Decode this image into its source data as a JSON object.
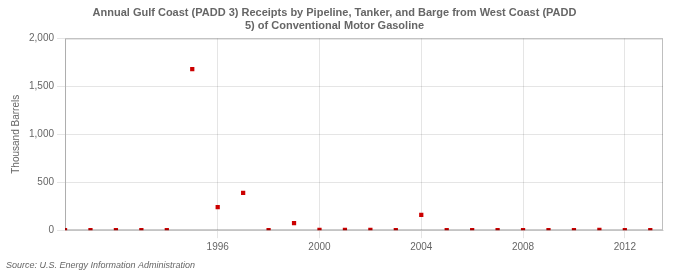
{
  "chart_data": {
    "type": "scatter",
    "title": "Annual Gulf Coast (PADD 3) Receipts by Pipeline, Tanker, and Barge from West Coast (PADD\n5) of Conventional Motor Gasoline",
    "ylabel": "Thousand Barrels",
    "annotations": [
      "Source: U.S. Energy Information Administration"
    ],
    "x": [
      1990,
      1991,
      1992,
      1993,
      1994,
      1995,
      1996,
      1997,
      1998,
      1999,
      2000,
      2001,
      2002,
      2003,
      2004,
      2005,
      2006,
      2007,
      2008,
      2009,
      2010,
      2011,
      2012,
      2013
    ],
    "values": [
      0,
      0,
      0,
      0,
      1,
      1680,
      240,
      390,
      1,
      75,
      4,
      4,
      4,
      1,
      160,
      2,
      2,
      2,
      2,
      2,
      2,
      3,
      2,
      2
    ],
    "color": "#cc0000",
    "marker": "square",
    "xlim": [
      1990,
      2013.5
    ],
    "xticks": [
      1996,
      2000,
      2004,
      2008,
      2012
    ],
    "ylim": [
      0,
      2000
    ],
    "yticks": [
      0,
      500,
      {
        "value": 1000,
        "label": "1,000"
      },
      {
        "value": 1500,
        "label": "1,500"
      },
      {
        "value": 2000,
        "label": "2,000"
      }
    ],
    "grid": true
  }
}
